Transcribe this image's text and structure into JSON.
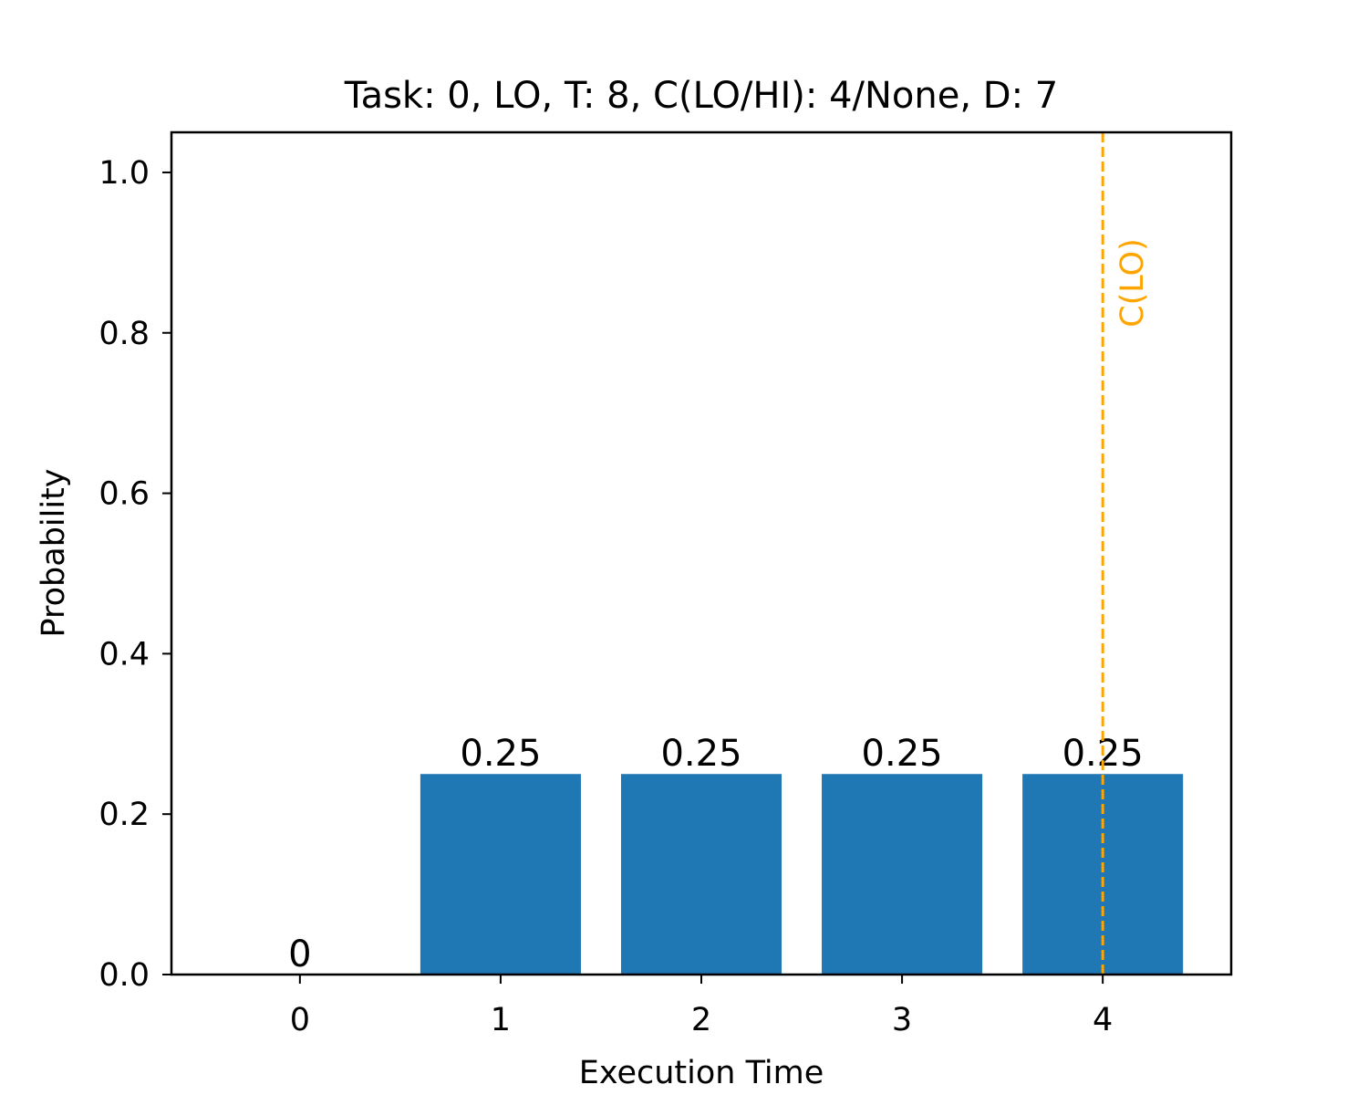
{
  "chart_data": {
    "type": "bar",
    "title": "Task: 0, LO, T: 8, C(LO/HI): 4/None, D: 7",
    "xlabel": "Execution Time",
    "ylabel": "Probability",
    "categories": [
      "0",
      "1",
      "2",
      "3",
      "4"
    ],
    "x": [
      0,
      1,
      2,
      3,
      4
    ],
    "values": [
      0,
      0.25,
      0.25,
      0.25,
      0.25
    ],
    "value_labels": [
      "0",
      "0.25",
      "0.25",
      "0.25",
      "0.25"
    ],
    "xlim": [
      -0.64,
      4.64
    ],
    "ylim": [
      0,
      1.05
    ],
    "yticks": [
      0.0,
      0.2,
      0.4,
      0.6,
      0.8,
      1.0
    ],
    "ytick_labels": [
      "0.0",
      "0.2",
      "0.4",
      "0.6",
      "0.8",
      "1.0"
    ],
    "bar_color": "#1f77b4",
    "grid": false,
    "legend": "none",
    "reference_lines": [
      {
        "x": 4,
        "label": "C(LO)",
        "color": "#ffa500",
        "style": "dashed"
      }
    ]
  }
}
